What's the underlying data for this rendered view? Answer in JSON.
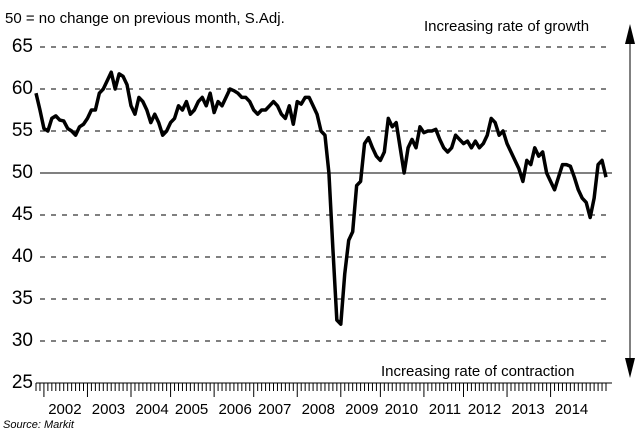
{
  "chart_data": {
    "type": "line",
    "subtitle": "50 = no change on previous month, S.Adj.",
    "annotations": [
      "Increasing rate of growth",
      "Increasing rate of contraction"
    ],
    "source": "Source: Markit",
    "categories": [
      null,
      null,
      "2002",
      null,
      null,
      null,
      null,
      null,
      null,
      null,
      null,
      null,
      null,
      "2003",
      null,
      null,
      null,
      null,
      null,
      null,
      null,
      null,
      null,
      null,
      "2004",
      null,
      null,
      null,
      null,
      null,
      null,
      null,
      null,
      null,
      "2005",
      null,
      null,
      null,
      null,
      null,
      null,
      null,
      null,
      null,
      null,
      "2006",
      null,
      null,
      null,
      null,
      null,
      null,
      null,
      null,
      null,
      "2007",
      null,
      null,
      null,
      null,
      null,
      null,
      null,
      null,
      null,
      null,
      "2008",
      null,
      null,
      null,
      null,
      null,
      null,
      null,
      null,
      null,
      null,
      "2009",
      null,
      null,
      null,
      null,
      null,
      null,
      null,
      null,
      null,
      "2010",
      null,
      null,
      null,
      null,
      null,
      null,
      null,
      null,
      null,
      null,
      "2011",
      null,
      null,
      null,
      null,
      null,
      null,
      null,
      null,
      null,
      "2012",
      null,
      null,
      null,
      null,
      null,
      null,
      null,
      null,
      null,
      null,
      "2013",
      null,
      null,
      null,
      null,
      null,
      null,
      null,
      null,
      null,
      null,
      "2014",
      null,
      null,
      null,
      null,
      null,
      null,
      null,
      null,
      null,
      null,
      null,
      null,
      null,
      null
    ],
    "series": [
      {
        "color": "#000000",
        "values": [
          59.5,
          57.5,
          55.3,
          55,
          56.5,
          56.8,
          56.3,
          56.2,
          55.3,
          55,
          54.5,
          55.5,
          55.8,
          56.5,
          57.5,
          57.5,
          59.5,
          60,
          61,
          62,
          60,
          61.8,
          61.5,
          60.5,
          58,
          57,
          59,
          58.5,
          57.5,
          56,
          57,
          56,
          54.5,
          55,
          56,
          56.5,
          58,
          57.5,
          58.5,
          57,
          57.5,
          58.5,
          59,
          58,
          59.5,
          57.2,
          58.5,
          58,
          59,
          60,
          59.8,
          59.5,
          59,
          59,
          58.5,
          57.5,
          57,
          57.5,
          57.5,
          58,
          58.5,
          58,
          57,
          56.5,
          58,
          55.8,
          58.5,
          58.2,
          59,
          59,
          58,
          57,
          55,
          54.5,
          50,
          41,
          32.5,
          32,
          38,
          42,
          43,
          48.5,
          49,
          53.5,
          54.2,
          53,
          52,
          51.5,
          52.5,
          56.5,
          55.5,
          56,
          53,
          50,
          53,
          54,
          53,
          55.5,
          54.8,
          55,
          55,
          55.2,
          54,
          53,
          52.5,
          53,
          54.5,
          54,
          53.5,
          53.8,
          53,
          53.8,
          53,
          53.5,
          54.5,
          56.5,
          56,
          54.5,
          55,
          53.5,
          52.5,
          51.5,
          50.5,
          49,
          51.5,
          51,
          53,
          52,
          52.5,
          50,
          49,
          48,
          49.5,
          51,
          51,
          50.8,
          49.5,
          48,
          47,
          46.5,
          44.7,
          47,
          51,
          51.5,
          49.5
        ]
      }
    ],
    "ylim": [
      25,
      65
    ],
    "yticks": [
      25,
      30,
      35,
      40,
      45,
      50,
      55,
      60,
      65
    ],
    "grid": "dashed",
    "hline": 50
  }
}
